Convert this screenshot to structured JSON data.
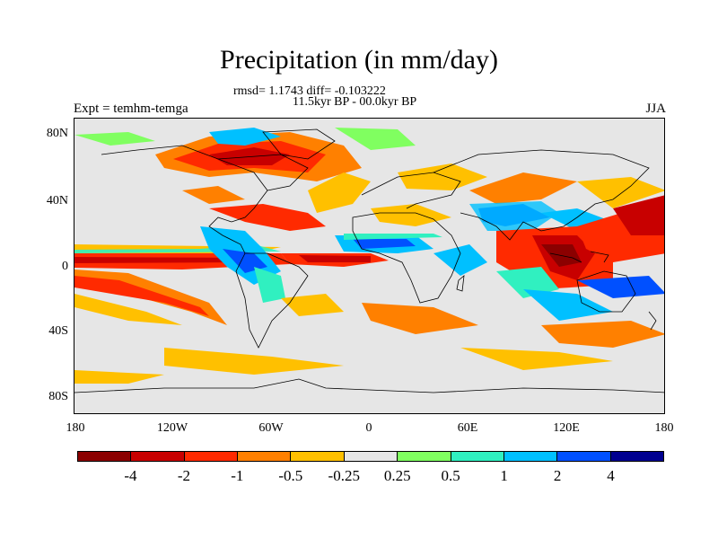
{
  "title": "Precipitation (in mm/day)",
  "stats": "rmsd= 1.1743 diff= -0.103222",
  "period": "11.5kyr BP - 00.0kyr BP",
  "experiment": "Expt = temhm-temga",
  "season": "JJA",
  "y_axis": {
    "labels": [
      "80N",
      "40N",
      "0",
      "40S",
      "80S"
    ]
  },
  "x_axis": {
    "labels": [
      "180",
      "120W",
      "60W",
      "0",
      "60E",
      "120E",
      "180"
    ]
  },
  "colorbar": {
    "colors": [
      "#8b0000",
      "#c80000",
      "#ff2a00",
      "#ff8000",
      "#ffc000",
      "#e6e6e6",
      "#80ff60",
      "#30f0c0",
      "#00c0ff",
      "#0050ff",
      "#000090"
    ],
    "labels": [
      "-4",
      "-2",
      "-1",
      "-0.5",
      "-0.25",
      "0.25",
      "0.5",
      "1",
      "2",
      "4"
    ]
  },
  "colors": {
    "background": "#ffffff",
    "map_fill": "#e6e6e6",
    "coastline": "#000000"
  }
}
